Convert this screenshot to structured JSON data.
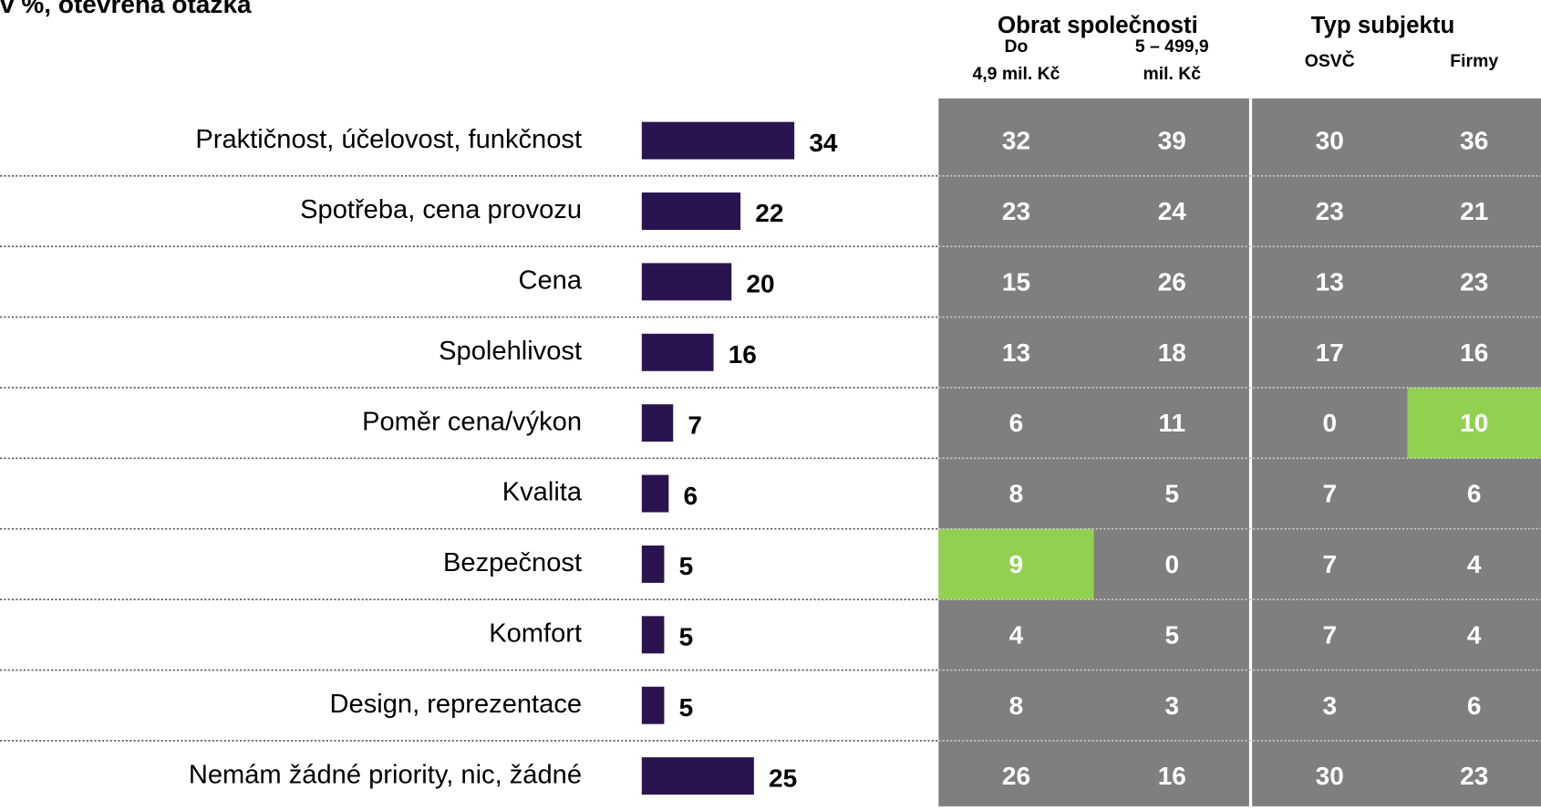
{
  "chart_data": {
    "type": "bar",
    "orientation": "horizontal",
    "subtitle": "v %, otevřená otázka",
    "categories": [
      "Praktičnost, účelovost, funkčnost",
      "Spotřeba, cena provozu",
      "Cena",
      "Spolehlivost",
      "Poměr cena/výkon",
      "Kvalita",
      "Bezpečnost",
      "Komfort",
      "Design, reprezentace",
      "Nemám žádné priority, nic, žádné"
    ],
    "values": [
      34,
      22,
      20,
      16,
      7,
      6,
      5,
      5,
      5,
      25
    ],
    "color": "#2a1450",
    "xlim": [
      0,
      60
    ],
    "table": {
      "cell_color": "#7f7f7f",
      "highlight_color": "#92d050",
      "groups": [
        {
          "title": "Obrat společnosti",
          "columns": [
            {
              "label": [
                "Do",
                "4,9 mil. Kč"
              ],
              "values": [
                32,
                23,
                15,
                13,
                6,
                8,
                9,
                4,
                8,
                26
              ],
              "highlight_rows": [
                6
              ]
            },
            {
              "label": [
                "5 – 499,9",
                "mil. Kč"
              ],
              "values": [
                39,
                24,
                26,
                18,
                11,
                5,
                0,
                5,
                3,
                16
              ],
              "highlight_rows": []
            }
          ]
        },
        {
          "title": "Typ subjektu",
          "columns": [
            {
              "label": [
                "OSVČ"
              ],
              "values": [
                30,
                23,
                13,
                17,
                0,
                7,
                7,
                7,
                3,
                30
              ],
              "highlight_rows": []
            },
            {
              "label": [
                "Firmy"
              ],
              "values": [
                36,
                21,
                23,
                16,
                10,
                6,
                4,
                4,
                6,
                23
              ],
              "highlight_rows": [
                4
              ]
            }
          ]
        }
      ]
    }
  }
}
